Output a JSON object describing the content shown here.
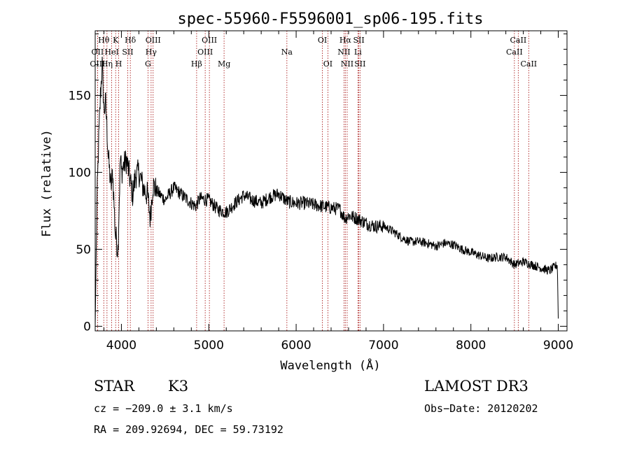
{
  "chart_data": {
    "type": "line",
    "title": "spec-55960-F5596001_sp06-195.fits",
    "xlabel": "Wavelength (Å)",
    "ylabel": "Flux (relative)",
    "xlim": [
      3700,
      9100
    ],
    "ylim": [
      -3,
      192
    ],
    "xticks": [
      4000,
      5000,
      6000,
      7000,
      8000,
      9000
    ],
    "yticks": [
      0,
      50,
      100,
      150
    ],
    "series": [
      {
        "name": "spectrum",
        "x": [
          3700,
          3720,
          3740,
          3760,
          3780,
          3800,
          3820,
          3850,
          3880,
          3900,
          3930,
          3960,
          3990,
          4000,
          4030,
          4060,
          4100,
          4130,
          4160,
          4200,
          4250,
          4300,
          4330,
          4360,
          4400,
          4500,
          4600,
          4700,
          4800,
          4850,
          4900,
          5000,
          5100,
          5200,
          5300,
          5400,
          5500,
          5600,
          5700,
          5800,
          5900,
          6000,
          6100,
          6200,
          6300,
          6400,
          6500,
          6560,
          6600,
          6700,
          6800,
          6900,
          7000,
          7100,
          7200,
          7300,
          7400,
          7500,
          7600,
          7700,
          7800,
          7900,
          8000,
          8100,
          8200,
          8300,
          8400,
          8500,
          8600,
          8700,
          8800,
          8900,
          8990,
          9000
        ],
        "y": [
          0,
          80,
          120,
          150,
          170,
          140,
          145,
          110,
          90,
          100,
          60,
          50,
          112,
          100,
          105,
          108,
          95,
          85,
          98,
          100,
          90,
          85,
          70,
          92,
          88,
          82,
          90,
          85,
          80,
          78,
          83,
          82,
          76,
          74,
          80,
          85,
          82,
          80,
          84,
          86,
          81,
          80,
          80,
          79,
          78,
          77,
          76,
          70,
          72,
          70,
          67,
          65,
          65,
          62,
          58,
          55,
          55,
          54,
          52,
          54,
          53,
          50,
          48,
          46,
          44,
          45,
          45,
          40,
          42,
          40,
          38,
          36,
          40,
          5
        ]
      }
    ],
    "spectral_lines": [
      {
        "label": "Hθ",
        "wave": 3798,
        "row": 1
      },
      {
        "label": "OII",
        "wave": 3727,
        "row": 2
      },
      {
        "label": "OIII",
        "wave": 3727,
        "row": 3
      },
      {
        "label": "K",
        "wave": 3934,
        "row": 1
      },
      {
        "label": "HeI",
        "wave": 3889,
        "row": 2
      },
      {
        "label": "Hη",
        "wave": 3835,
        "row": 3
      },
      {
        "label": "Hδ",
        "wave": 4102,
        "row": 1
      },
      {
        "label": "SII",
        "wave": 4072,
        "row": 2
      },
      {
        "label": "H",
        "wave": 3969,
        "row": 3
      },
      {
        "label": "OIII",
        "wave": 4363,
        "row": 1
      },
      {
        "label": "Hγ",
        "wave": 4340,
        "row": 2
      },
      {
        "label": "G",
        "wave": 4304,
        "row": 3
      },
      {
        "label": "OIII",
        "wave": 5007,
        "row": 1
      },
      {
        "label": "OIII",
        "wave": 4959,
        "row": 2
      },
      {
        "label": "Hβ",
        "wave": 4861,
        "row": 3
      },
      {
        "label": "Mg",
        "wave": 5175,
        "row": 3
      },
      {
        "label": "Na",
        "wave": 5894,
        "row": 2
      },
      {
        "label": "OI",
        "wave": 6300,
        "row": 1
      },
      {
        "label": "OI",
        "wave": 6363,
        "row": 3
      },
      {
        "label": "Hα",
        "wave": 6563,
        "row": 1
      },
      {
        "label": "NII",
        "wave": 6548,
        "row": 2
      },
      {
        "label": "NII",
        "wave": 6584,
        "row": 3
      },
      {
        "label": "SII",
        "wave": 6717,
        "row": 1
      },
      {
        "label": "Li",
        "wave": 6707,
        "row": 2
      },
      {
        "label": "SII",
        "wave": 6731,
        "row": 3
      },
      {
        "label": "CaII",
        "wave": 8542,
        "row": 1
      },
      {
        "label": "CaII",
        "wave": 8498,
        "row": 2
      },
      {
        "label": "CaII",
        "wave": 8662,
        "row": 3
      }
    ]
  },
  "footer": {
    "class": "STAR",
    "subclass": "K3",
    "survey": "LAMOST DR3",
    "cz": "cz = −209.0 ± 3.1 km/s",
    "obs_date": "Obs−Date: 20120202",
    "coords": "RA = 209.92694, DEC =  59.73192"
  },
  "colors": {
    "line_marker": "#a00000",
    "spectrum": "#000000"
  }
}
